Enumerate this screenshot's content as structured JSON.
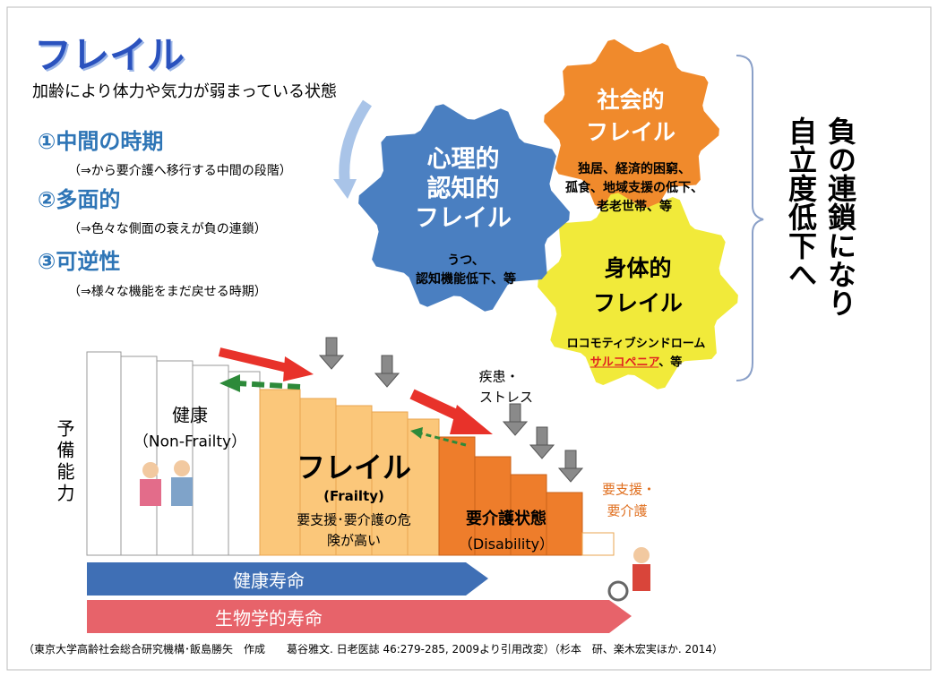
{
  "title": "フレイル",
  "subtitle": "加齢により体力や気力が弱まっている状態",
  "points": [
    {
      "heading": "①中間の時期",
      "note": "（⇒から要介護へ移行する中間の段階）"
    },
    {
      "heading": "②多面的",
      "note": "（⇒色々な側面の衰えが負の連鎖）"
    },
    {
      "heading": "③可逆性",
      "note": "（⇒様々な機能をまだ戻せる時期）"
    }
  ],
  "gears": {
    "psychological": {
      "label": [
        "心理的",
        "認知的",
        "フレイル"
      ],
      "details": [
        "うつ、",
        "認知機能低下、等"
      ]
    },
    "social": {
      "label": [
        "社会的",
        "フレイル"
      ],
      "details": [
        "独居、経済的困窮、",
        "孤食、地域支援の低下、",
        "老老世帯、等"
      ]
    },
    "physical": {
      "label": [
        "身体的",
        "フレイル"
      ],
      "details": [
        "ロコモティブシンドローム"
      ],
      "highlight": "サルコペニア",
      "highlight_suffix": "、等"
    }
  },
  "conclusion": [
    "負の連鎖になり",
    "自立度低下へ"
  ],
  "axis_label": "予備能力",
  "stages": {
    "health": [
      "健康",
      "（Non-Frailty）"
    ],
    "frailty": [
      "フレイル",
      "(Frailty)",
      "要支援･要介護の危",
      "険が高い"
    ],
    "disability": [
      "要介護状態",
      "（Disability）"
    ]
  },
  "stressor": [
    "疾患・",
    "ストレス"
  ],
  "care_need": [
    "要支援・",
    "要介護"
  ],
  "lifespans": [
    "健康寿命",
    "生物学的寿命"
  ],
  "citation": "（東京大学高齢社会総合研究機構･飯島勝矢　作成　　葛谷雅文. 日老医誌 46:279-285, 2009より引用改変）（杉本　研、楽木宏実ほか. 2014）"
}
